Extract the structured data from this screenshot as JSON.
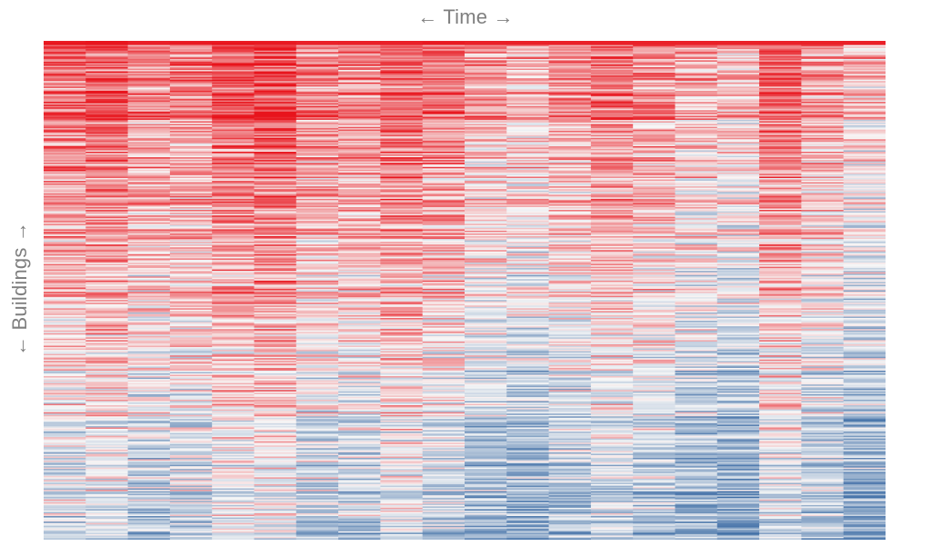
{
  "chart_data": {
    "type": "heatmap",
    "xlabel": "← Time →",
    "ylabel": "← Buildings →",
    "grid": false,
    "legend": "none",
    "n_columns": 20,
    "n_rows": 360,
    "value_range": [
      -1,
      1
    ],
    "row_trend": {
      "top": 0.85,
      "bottom": -0.8
    },
    "column_means": [
      0.4,
      0.52,
      0.18,
      0.28,
      0.58,
      0.68,
      0.22,
      0.24,
      0.5,
      0.3,
      -0.05,
      -0.22,
      0.06,
      0.28,
      0.14,
      -0.15,
      -0.3,
      0.42,
      0.02,
      -0.32
    ],
    "colors": {
      "high": "#e8141c",
      "mid": "#f7f7f7",
      "low": "#3f6ea6",
      "background": "#ffffff",
      "label": "#7f7f7f"
    }
  }
}
